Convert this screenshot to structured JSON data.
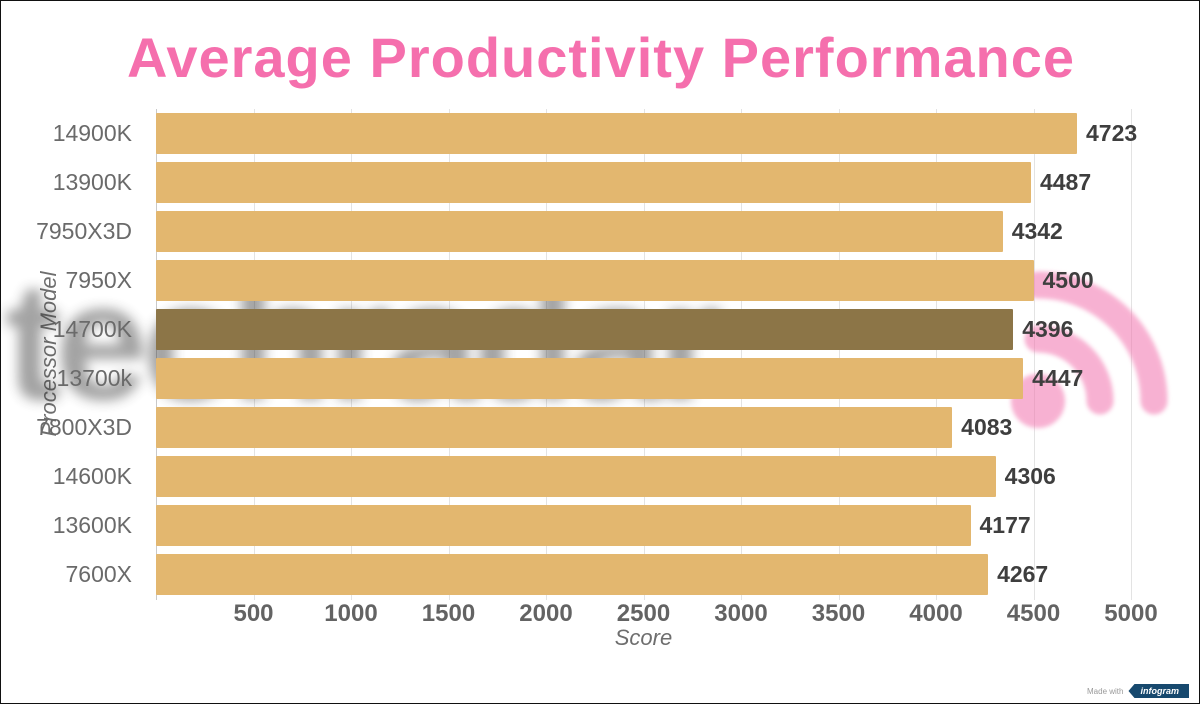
{
  "title": {
    "text": "Average Productivity Performance",
    "color": "#f56fad"
  },
  "watermark": {
    "text": "techradar",
    "text_color": "#333333",
    "logo_color": "#f273ae",
    "logo_icon": "radar-arcs-icon"
  },
  "footer": {
    "made_with": "Made with",
    "badge_label": "infogram",
    "badge_color": "#17496e"
  },
  "chart_data": {
    "type": "bar",
    "orientation": "horizontal",
    "title": "Average Productivity Performance",
    "xlabel": "Score",
    "ylabel": "Processor Model",
    "categories": [
      "14900K",
      "13900K",
      "7950X3D",
      "7950X",
      "14700K",
      "13700k",
      "7800X3D",
      "14600K",
      "13600K",
      "7600X"
    ],
    "values": [
      4723,
      4487,
      4342,
      4500,
      4396,
      4447,
      4083,
      4306,
      4177,
      4267
    ],
    "xlim": [
      0,
      5000
    ],
    "xticks": [
      500,
      1000,
      1500,
      2000,
      2500,
      3000,
      3500,
      4000,
      4500,
      5000
    ],
    "grid": true,
    "legend_position": "none",
    "bar_color": "#e3b76f",
    "highlight_index": 4,
    "highlight_color": "#8c7547"
  }
}
